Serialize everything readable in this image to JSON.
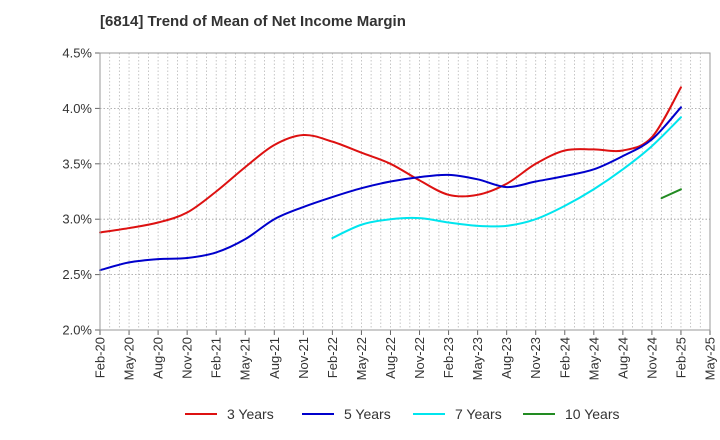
{
  "chart_data": {
    "type": "line",
    "title": "[6814]  Trend of Mean of Net Income Margin",
    "xlabel": "",
    "ylabel": "",
    "x_tick_labels": [
      "Feb-20",
      "May-20",
      "Aug-20",
      "Nov-20",
      "Feb-21",
      "May-21",
      "Aug-21",
      "Nov-21",
      "Feb-22",
      "May-22",
      "Aug-22",
      "Nov-22",
      "Feb-23",
      "May-23",
      "Aug-23",
      "Nov-23",
      "Feb-24",
      "May-24",
      "Aug-24",
      "Nov-24",
      "Feb-25",
      "May-25"
    ],
    "y_tick_labels": [
      "2.0%",
      "2.5%",
      "3.0%",
      "3.5%",
      "4.0%",
      "4.5%"
    ],
    "y_ticks": [
      2.0,
      2.5,
      3.0,
      3.5,
      4.0,
      4.5
    ],
    "ylim": [
      2.0,
      4.5
    ],
    "grid": true,
    "legend_position": "bottom",
    "series": [
      {
        "name": "3 Years",
        "color": "#dd1111",
        "points": [
          [
            "Feb-20",
            2.88
          ],
          [
            "May-20",
            2.92
          ],
          [
            "Aug-20",
            2.97
          ],
          [
            "Nov-20",
            3.06
          ],
          [
            "Feb-21",
            3.25
          ],
          [
            "May-21",
            3.47
          ],
          [
            "Aug-21",
            3.67
          ],
          [
            "Nov-21",
            3.76
          ],
          [
            "Feb-22",
            3.7
          ],
          [
            "May-22",
            3.6
          ],
          [
            "Aug-22",
            3.5
          ],
          [
            "Nov-22",
            3.35
          ],
          [
            "Feb-23",
            3.22
          ],
          [
            "May-23",
            3.22
          ],
          [
            "Aug-23",
            3.32
          ],
          [
            "Nov-23",
            3.5
          ],
          [
            "Feb-24",
            3.62
          ],
          [
            "May-24",
            3.63
          ],
          [
            "Aug-24",
            3.62
          ],
          [
            "Nov-24",
            3.74
          ],
          [
            "Feb-25",
            4.19
          ]
        ]
      },
      {
        "name": "5 Years",
        "color": "#0000cc",
        "points": [
          [
            "Feb-20",
            2.54
          ],
          [
            "May-20",
            2.61
          ],
          [
            "Aug-20",
            2.64
          ],
          [
            "Nov-20",
            2.65
          ],
          [
            "Feb-21",
            2.7
          ],
          [
            "May-21",
            2.82
          ],
          [
            "Aug-21",
            3.0
          ],
          [
            "Nov-21",
            3.11
          ],
          [
            "Feb-22",
            3.2
          ],
          [
            "May-22",
            3.28
          ],
          [
            "Aug-22",
            3.34
          ],
          [
            "Nov-22",
            3.38
          ],
          [
            "Feb-23",
            3.4
          ],
          [
            "May-23",
            3.36
          ],
          [
            "Aug-23",
            3.29
          ],
          [
            "Nov-23",
            3.34
          ],
          [
            "Feb-24",
            3.39
          ],
          [
            "May-24",
            3.45
          ],
          [
            "Aug-24",
            3.57
          ],
          [
            "Nov-24",
            3.72
          ],
          [
            "Feb-25",
            4.01
          ]
        ]
      },
      {
        "name": "7 Years",
        "color": "#00e5ee",
        "points": [
          [
            "Feb-22",
            2.83
          ],
          [
            "May-22",
            2.95
          ],
          [
            "Aug-22",
            3.0
          ],
          [
            "Nov-22",
            3.01
          ],
          [
            "Feb-23",
            2.97
          ],
          [
            "May-23",
            2.94
          ],
          [
            "Aug-23",
            2.94
          ],
          [
            "Nov-23",
            3.0
          ],
          [
            "Feb-24",
            3.12
          ],
          [
            "May-24",
            3.27
          ],
          [
            "Aug-24",
            3.45
          ],
          [
            "Nov-24",
            3.66
          ],
          [
            "Feb-25",
            3.92
          ]
        ]
      },
      {
        "name": "10 Years",
        "color": "#228b22",
        "points": [
          [
            "Dec-24",
            3.19
          ],
          [
            "Feb-25",
            3.27
          ]
        ]
      }
    ]
  }
}
